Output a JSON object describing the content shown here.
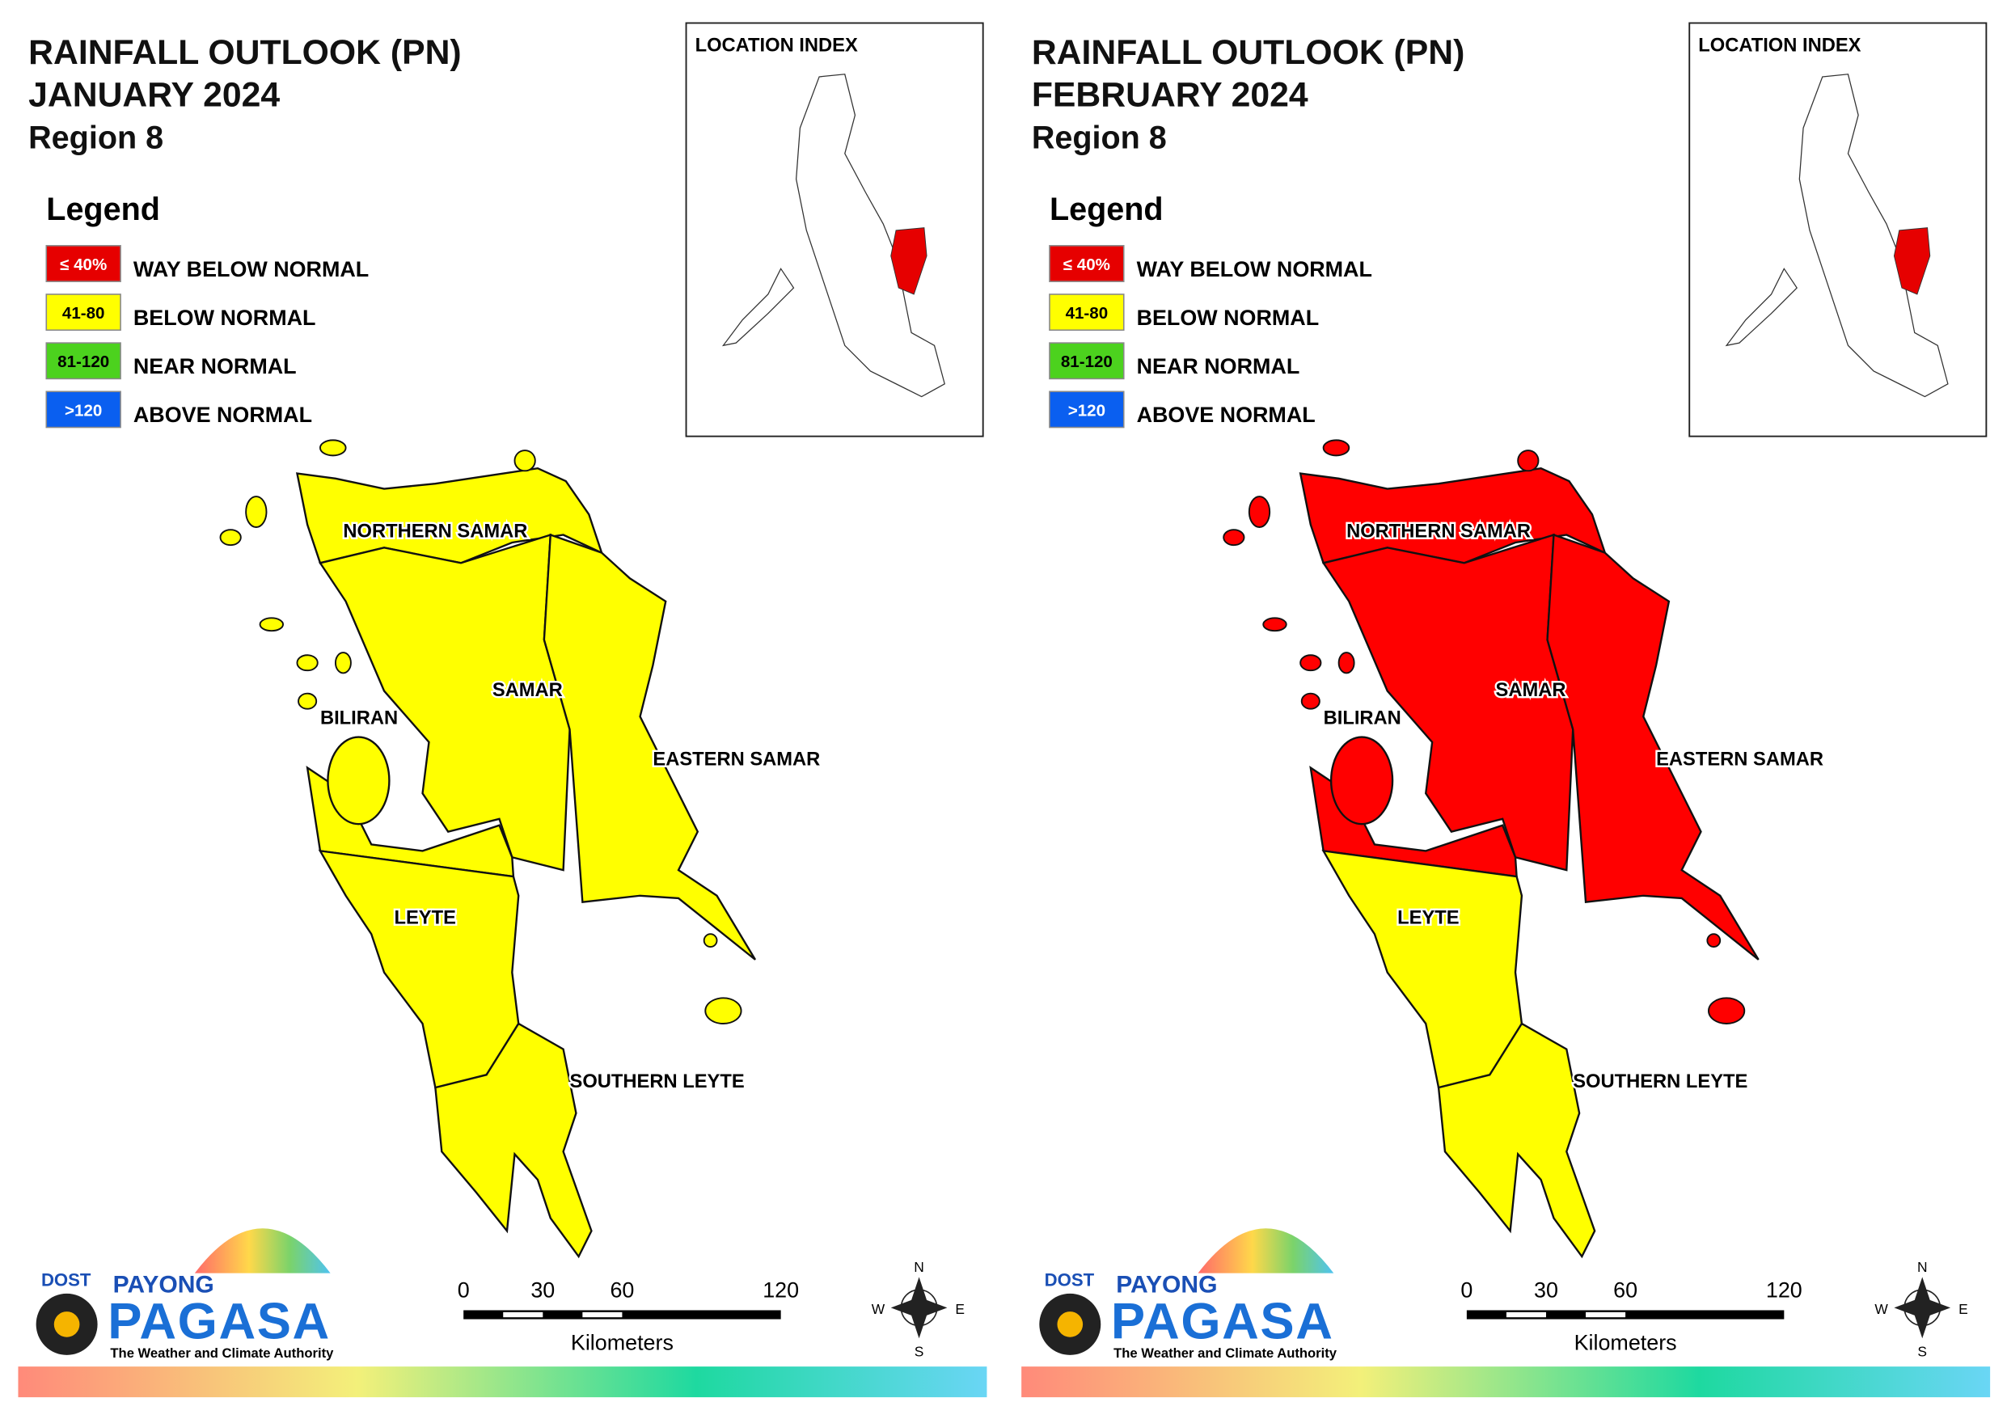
{
  "panels": [
    {
      "title": [
        "RAINFALL OUTLOOK (PN)",
        "JANUARY 2024",
        "Region 8"
      ],
      "location_index": "LOCATION INDEX",
      "legend": {
        "title": "Legend",
        "items": [
          {
            "swatch": "≤ 40%",
            "label": "WAY BELOW NORMAL",
            "color": "#e60000"
          },
          {
            "swatch": "41-80",
            "label": "BELOW NORMAL",
            "color": "#ffff00"
          },
          {
            "swatch": "81-120",
            "label": "NEAR NORMAL",
            "color": "#4cd21e"
          },
          {
            "swatch": ">120",
            "label": "ABOVE NORMAL",
            "color": "#0a5ff0"
          }
        ]
      },
      "regions": [
        {
          "name": "NORTHERN SAMAR",
          "colors": [
            "#ffff00"
          ]
        },
        {
          "name": "SAMAR",
          "colors": [
            "#ffff00"
          ]
        },
        {
          "name": "EASTERN SAMAR",
          "colors": [
            "#ffff00"
          ]
        },
        {
          "name": "BILIRAN",
          "colors": [
            "#ffff00"
          ]
        },
        {
          "name": "LEYTE",
          "colors": [
            "#ffff00",
            "#ffff00"
          ]
        },
        {
          "name": "SOUTHERN LEYTE",
          "colors": [
            "#ffff00"
          ]
        }
      ],
      "scale": {
        "ticks": [
          "0",
          "30",
          "60",
          "120"
        ],
        "unit": "Kilometers"
      },
      "compass": [
        "N",
        "E",
        "S",
        "W"
      ],
      "logo": {
        "agency": "DOST",
        "brand_top": "PAYONG",
        "brand": "PAGASA",
        "tagline": "The Weather and Climate Authority"
      }
    },
    {
      "title": [
        "RAINFALL OUTLOOK (PN)",
        "FEBRUARY 2024",
        "Region 8"
      ],
      "location_index": "LOCATION INDEX",
      "legend": {
        "title": "Legend",
        "items": [
          {
            "swatch": "≤ 40%",
            "label": "WAY BELOW NORMAL",
            "color": "#e60000"
          },
          {
            "swatch": "41-80",
            "label": "BELOW NORMAL",
            "color": "#ffff00"
          },
          {
            "swatch": "81-120",
            "label": "NEAR NORMAL",
            "color": "#4cd21e"
          },
          {
            "swatch": ">120",
            "label": "ABOVE NORMAL",
            "color": "#0a5ff0"
          }
        ]
      },
      "regions": [
        {
          "name": "NORTHERN SAMAR",
          "colors": [
            "#ff0000"
          ]
        },
        {
          "name": "SAMAR",
          "colors": [
            "#ff0000"
          ]
        },
        {
          "name": "EASTERN SAMAR",
          "colors": [
            "#ff0000"
          ]
        },
        {
          "name": "BILIRAN",
          "colors": [
            "#ff0000"
          ]
        },
        {
          "name": "LEYTE",
          "colors": [
            "#ff0000",
            "#ffff00"
          ]
        },
        {
          "name": "SOUTHERN LEYTE",
          "colors": [
            "#ffff00"
          ]
        }
      ],
      "scale": {
        "ticks": [
          "0",
          "30",
          "60",
          "120"
        ],
        "unit": "Kilometers"
      },
      "compass": [
        "N",
        "E",
        "S",
        "W"
      ],
      "logo": {
        "agency": "DOST",
        "brand_top": "PAYONG",
        "brand": "PAGASA",
        "tagline": "The Weather and Climate Authority"
      }
    }
  ]
}
